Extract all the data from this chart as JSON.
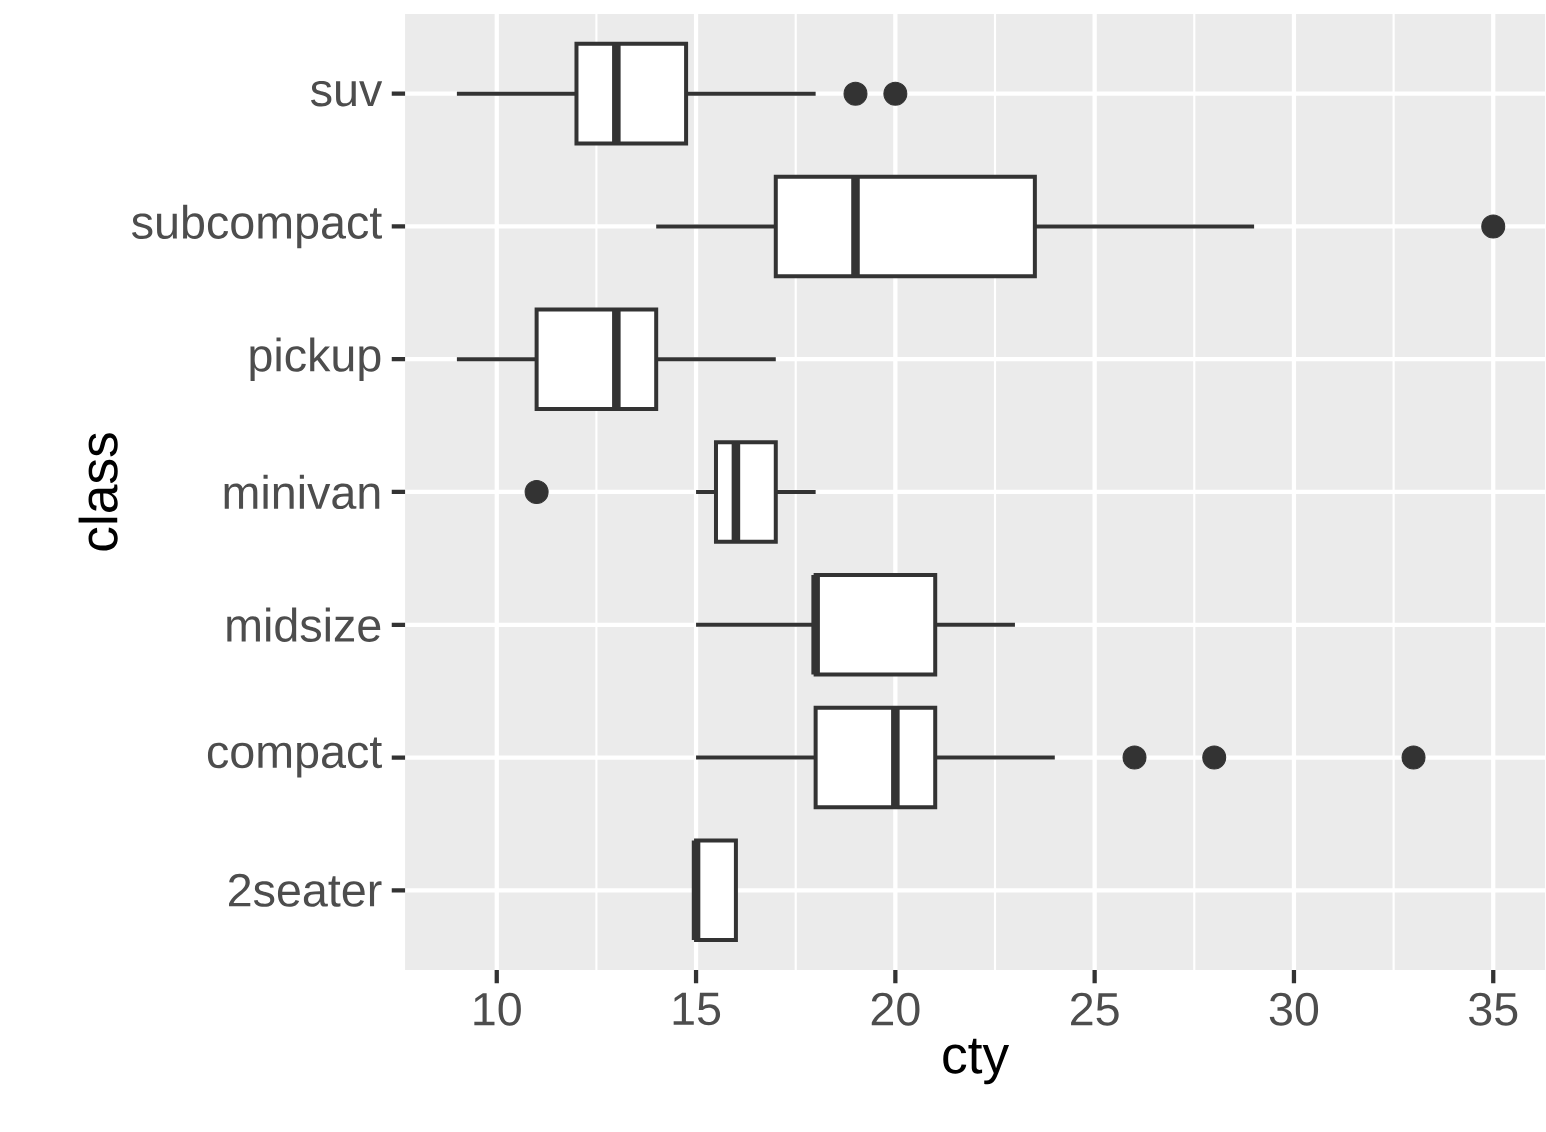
{
  "chart_data": {
    "type": "box",
    "orientation": "horizontal",
    "xlabel": "cty",
    "ylabel": "class",
    "categories": [
      "suv",
      "subcompact",
      "pickup",
      "minivan",
      "midsize",
      "compact",
      "2seater"
    ],
    "boxes": [
      {
        "low": 9,
        "q1": 12,
        "median": 13,
        "q3": 14.75,
        "high": 18,
        "outliers": [
          19,
          20
        ]
      },
      {
        "low": 14,
        "q1": 17,
        "median": 19,
        "q3": 23.5,
        "high": 29,
        "outliers": [
          35
        ]
      },
      {
        "low": 9,
        "q1": 11,
        "median": 13,
        "q3": 14,
        "high": 17
      },
      {
        "low": 15,
        "q1": 15.5,
        "median": 16,
        "q3": 17,
        "high": 18,
        "outliers": [
          11
        ]
      },
      {
        "low": 15,
        "q1": 18,
        "median": 18,
        "q3": 21,
        "high": 23
      },
      {
        "low": 15,
        "q1": 18,
        "median": 20,
        "q3": 21,
        "high": 24,
        "outliers": [
          26,
          28,
          33
        ]
      },
      {
        "low": 15,
        "q1": 15,
        "median": 15,
        "q3": 16,
        "high": 16
      }
    ],
    "color": "#333333",
    "xlim": [
      7.7,
      36.3
    ],
    "xticks": [
      10,
      15,
      20,
      25,
      30,
      35
    ],
    "grid": true
  }
}
